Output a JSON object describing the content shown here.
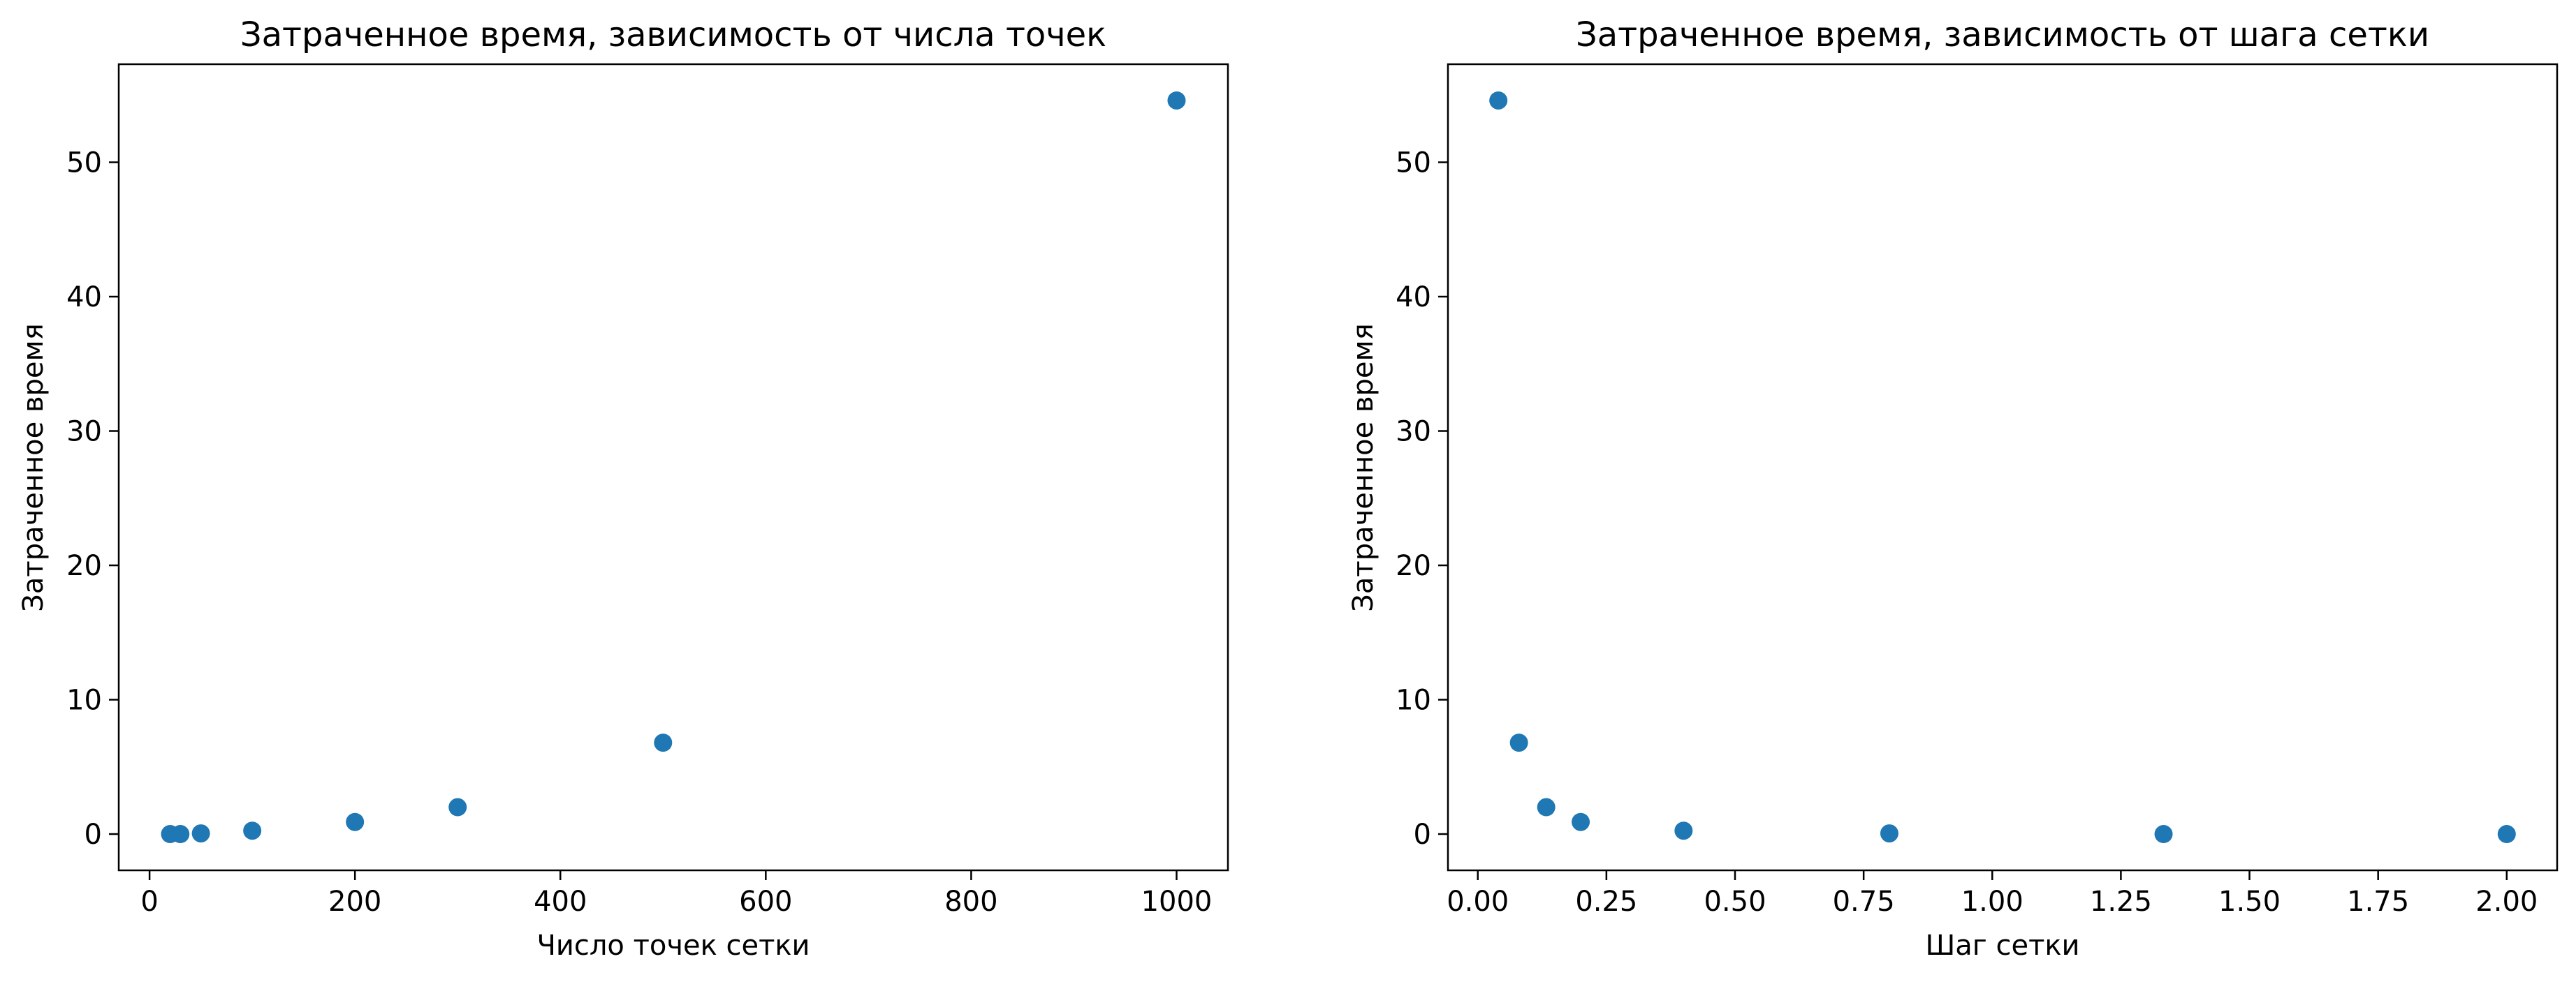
{
  "colors": {
    "marker": "#1f77b4",
    "axes": "#000000",
    "background": "#ffffff"
  },
  "chart_data": [
    {
      "type": "scatter",
      "title": "Затраченное время, зависимость от числа точек",
      "xlabel": "Число точек сетки",
      "ylabel": "Затраченное время",
      "xlim": [
        -30,
        1050
      ],
      "ylim": [
        -2.7,
        57.3
      ],
      "xticks": [
        0,
        200,
        400,
        600,
        800,
        1000
      ],
      "xtick_labels": [
        "0",
        "200",
        "400",
        "600",
        "800",
        "1000"
      ],
      "yticks": [
        0,
        10,
        20,
        30,
        40,
        50
      ],
      "ytick_labels": [
        "0",
        "10",
        "20",
        "30",
        "40",
        "50"
      ],
      "grid": false,
      "series": [
        {
          "x": [
            20,
            30,
            50,
            100,
            200,
            300,
            500,
            1000
          ],
          "y": [
            0.0,
            0.0,
            0.05,
            0.25,
            0.9,
            2.0,
            6.8,
            54.6
          ]
        }
      ]
    },
    {
      "type": "scatter",
      "title": "Затраченное время, зависимость от шага сетки",
      "xlabel": "Шаг сетки",
      "ylabel": "Затраченное время",
      "xlim": [
        -0.058,
        2.098
      ],
      "ylim": [
        -2.7,
        57.3
      ],
      "xticks": [
        0,
        0.25,
        0.5,
        0.75,
        1.0,
        1.25,
        1.5,
        1.75,
        2.0
      ],
      "xtick_labels": [
        "0.00",
        "0.25",
        "0.50",
        "0.75",
        "1.00",
        "1.25",
        "1.50",
        "1.75",
        "2.00"
      ],
      "yticks": [
        0,
        10,
        20,
        30,
        40,
        50
      ],
      "ytick_labels": [
        "0",
        "10",
        "20",
        "30",
        "40",
        "50"
      ],
      "grid": false,
      "series": [
        {
          "x": [
            0.04,
            0.08,
            0.133,
            0.2,
            0.4,
            0.8,
            1.333,
            2.0
          ],
          "y": [
            54.6,
            6.8,
            2.0,
            0.9,
            0.25,
            0.05,
            0.0,
            0.0
          ]
        }
      ]
    }
  ]
}
